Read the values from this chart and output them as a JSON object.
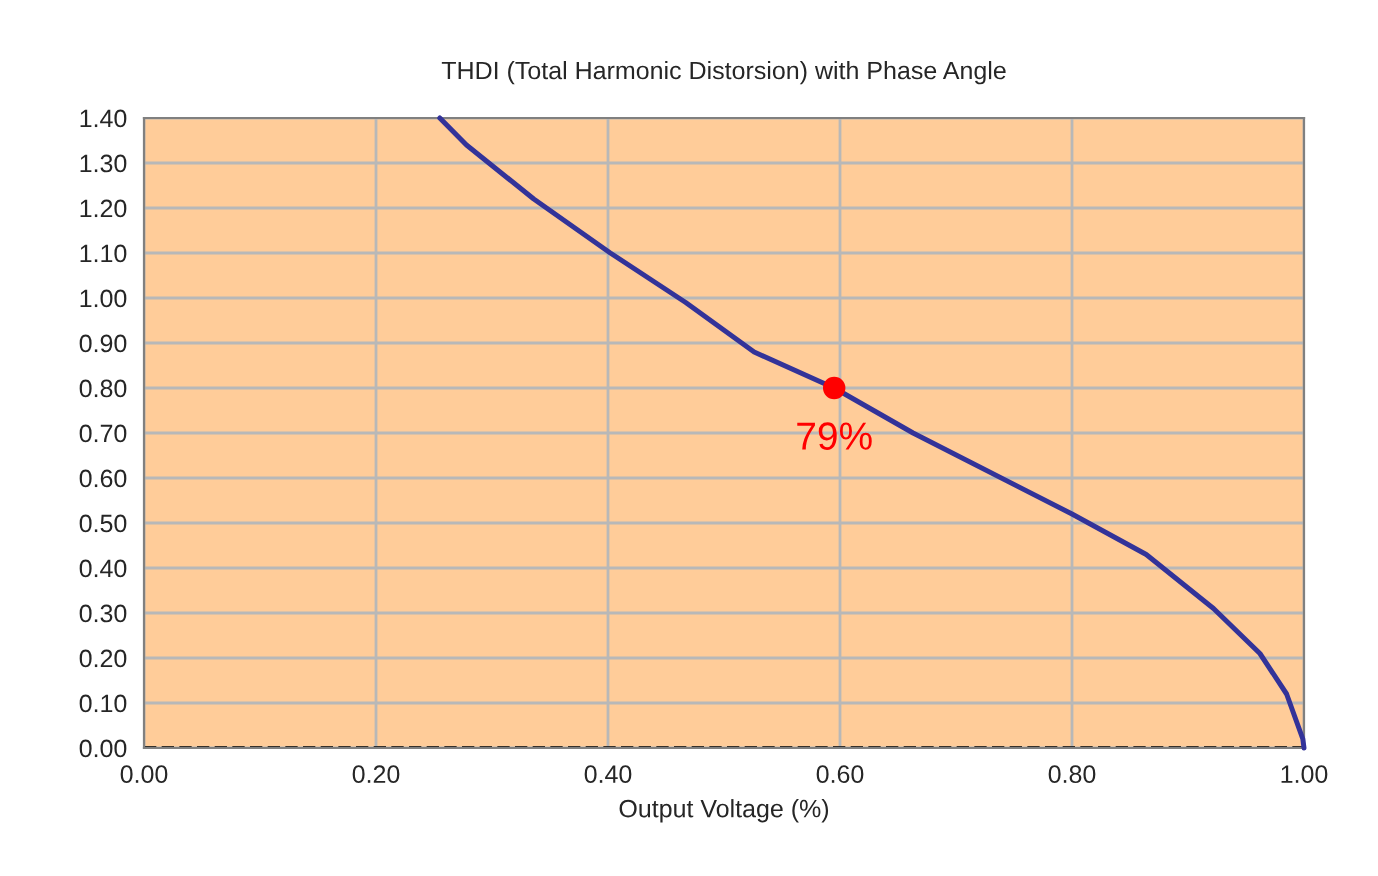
{
  "chart_data": {
    "type": "line",
    "title": "THDI (Total Harmonic Distorsion) with Phase Angle",
    "xlabel": "Output Voltage (%)",
    "xlim": [
      0,
      1
    ],
    "xticks": [
      {
        "value": 0,
        "label": "0.00"
      },
      {
        "value": 0.2,
        "label": "0.20"
      },
      {
        "value": 0.4,
        "label": "0.40"
      },
      {
        "value": 0.6,
        "label": "0.60"
      },
      {
        "value": 0.8,
        "label": "0.80"
      },
      {
        "value": 1,
        "label": "1.00"
      }
    ],
    "ylim": [
      0,
      1.4
    ],
    "yticks": [
      {
        "value": 0,
        "label": "0.00"
      },
      {
        "value": 0.1,
        "label": "0.10"
      },
      {
        "value": 0.2,
        "label": "0.20"
      },
      {
        "value": 0.3,
        "label": "0.30"
      },
      {
        "value": 0.4,
        "label": "0.40"
      },
      {
        "value": 0.5,
        "label": "0.50"
      },
      {
        "value": 0.6,
        "label": "0.60"
      },
      {
        "value": 0.7,
        "label": "0.70"
      },
      {
        "value": 0.8,
        "label": "0.80"
      },
      {
        "value": 0.9,
        "label": "0.90"
      },
      {
        "value": 1,
        "label": "1.00"
      },
      {
        "value": 1.1,
        "label": "1.10"
      },
      {
        "value": 1.2,
        "label": "1.20"
      },
      {
        "value": 1.3,
        "label": "1.30"
      },
      {
        "value": 1.4,
        "label": "1.40"
      }
    ],
    "grid": true,
    "line_style": "solid",
    "series": [
      {
        "marker": "none",
        "color": "#333399",
        "x": [
          0.255,
          0.278,
          0.336,
          0.402,
          0.467,
          0.526,
          0.595,
          0.663,
          0.8,
          0.864,
          0.922,
          0.962,
          0.985,
          0.999,
          1.0
        ],
        "values": [
          1.4,
          1.34,
          1.22,
          1.1,
          0.99,
          0.88,
          0.8,
          0.7,
          0.52,
          0.43,
          0.31,
          0.21,
          0.12,
          0.02,
          0.0
        ]
      },
      {
        "type": "scatter",
        "marker": "circle",
        "color": "#ff0000",
        "x": [
          0.595
        ],
        "values": [
          0.8
        ]
      }
    ],
    "ref_lines": [
      {
        "axis": "y",
        "value": 0,
        "color": "#000000",
        "line_style": "dashed"
      }
    ],
    "annotations": [
      {
        "text": "79%",
        "x": 0.595,
        "y": 0.8
      }
    ]
  }
}
